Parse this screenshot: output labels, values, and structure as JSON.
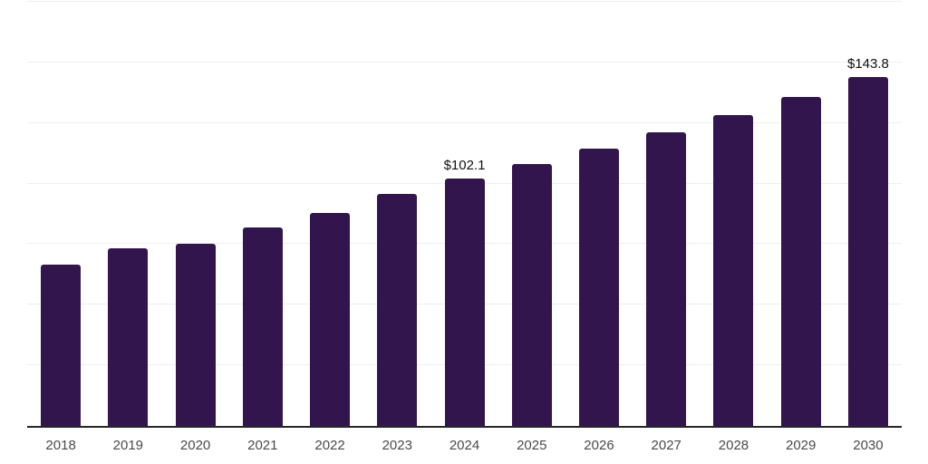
{
  "chart_data": {
    "type": "bar",
    "title": "",
    "xlabel": "",
    "ylabel": "",
    "categories": [
      "2018",
      "2019",
      "2020",
      "2021",
      "2022",
      "2023",
      "2024",
      "2025",
      "2026",
      "2027",
      "2028",
      "2029",
      "2030"
    ],
    "values": [
      66.5,
      73.3,
      75.3,
      81.8,
      87.9,
      95.9,
      102.1,
      108.1,
      114.4,
      121.2,
      128.3,
      135.8,
      143.8
    ],
    "data_labels": [
      "",
      "",
      "",
      "",
      "",
      "",
      "$102.1",
      "",
      "",
      "",
      "",
      "",
      "$143.8"
    ],
    "ylim": [
      0,
      175
    ],
    "grid_step": 25,
    "grid": true,
    "y_tick_labels_visible": false,
    "legend": false,
    "colors": {
      "bar": "#33154e",
      "gridline": "#efefef",
      "axis_line": "#262626",
      "tick_label": "#4a4a4a",
      "data_label": "#111111",
      "background": "#ffffff"
    }
  }
}
